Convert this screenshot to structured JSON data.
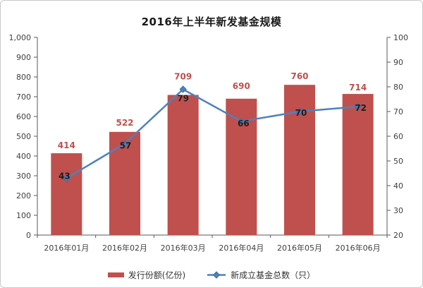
{
  "chart_data": {
    "type": "bar",
    "subtype": "combo-bar-line-dual-axis",
    "title": "2016年上半年新发基金规模",
    "categories": [
      "2016年01月",
      "2016年02月",
      "2016年03月",
      "2016年04月",
      "2016年05月",
      "2016年06月"
    ],
    "series": [
      {
        "name": "发行份额(亿份)",
        "type": "bar",
        "axis": "left",
        "values": [
          414,
          522,
          709,
          690,
          760,
          714
        ],
        "color": "#c0504d",
        "label_color": "#c0504d"
      },
      {
        "name": "新成立基金总数（只）",
        "type": "line",
        "axis": "right",
        "values": [
          43,
          57,
          79,
          66,
          70,
          72
        ],
        "color": "#4f81bd",
        "marker": "diamond",
        "marker_edge_color": "#3a6ea5",
        "label_color": "#1f1f1f"
      }
    ],
    "left_axis": {
      "min": 0,
      "max": 1000,
      "step": 100,
      "ticks": [
        "0",
        "100",
        "200",
        "300",
        "400",
        "500",
        "600",
        "700",
        "800",
        "900",
        "1,000"
      ]
    },
    "right_axis": {
      "min": 20,
      "max": 100,
      "step": 10,
      "ticks": [
        "20",
        "30",
        "40",
        "50",
        "60",
        "70",
        "80",
        "90",
        "100"
      ]
    },
    "grid": false,
    "legend_position": "bottom",
    "axis_line_color": "#595959"
  }
}
